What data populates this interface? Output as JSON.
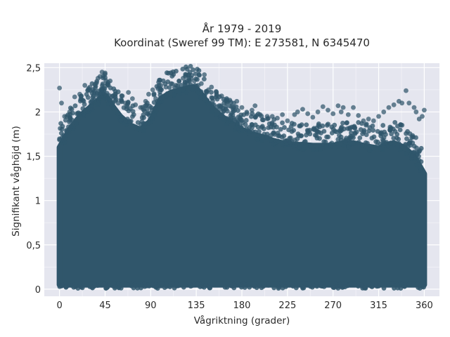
{
  "chart_data": {
    "type": "scatter",
    "title_line1": "År 1979 - 2019",
    "title_line2": "Koordinat (Sweref 99 TM): E 273581, N 6345470",
    "xlabel": "Vågriktning (grader)",
    "ylabel": "Signifikant våghöjd (m)",
    "xlim": [
      -15,
      375
    ],
    "ylim": [
      -0.08,
      2.55
    ],
    "x_ticks": [
      0,
      45,
      90,
      135,
      180,
      225,
      270,
      315,
      360
    ],
    "x_tick_labels": [
      "0",
      "45",
      "90",
      "135",
      "180",
      "225",
      "270",
      "315",
      "360"
    ],
    "y_ticks": [
      0,
      0.5,
      1,
      1.5,
      2,
      2.5
    ],
    "y_tick_labels": [
      "0",
      "0,5",
      "1",
      "1,5",
      "2",
      "2,5"
    ],
    "grid": true,
    "series": [
      {
        "color": "#30566b",
        "x_range": [
          0,
          360
        ],
        "y_min": 0.05,
        "envelope": {
          "x": [
            0,
            10,
            20,
            30,
            40,
            45,
            50,
            60,
            70,
            80,
            90,
            100,
            110,
            120,
            130,
            135,
            140,
            150,
            160,
            170,
            180,
            190,
            200,
            210,
            220,
            225,
            230,
            240,
            250,
            260,
            270,
            280,
            290,
            300,
            310,
            315,
            320,
            330,
            340,
            350,
            360
          ],
          "y_max": [
            1.6,
            1.8,
            1.95,
            2.05,
            2.15,
            2.2,
            2.1,
            1.95,
            1.85,
            1.8,
            1.9,
            2.15,
            2.22,
            2.25,
            2.28,
            2.27,
            2.2,
            2.05,
            1.95,
            1.87,
            1.8,
            1.75,
            1.72,
            1.68,
            1.65,
            1.65,
            1.63,
            1.63,
            1.62,
            1.62,
            1.62,
            1.65,
            1.65,
            1.62,
            1.6,
            1.58,
            1.62,
            1.65,
            1.6,
            1.5,
            1.3
          ]
        },
        "outliers": [
          [
            0,
            2.27
          ],
          [
            2,
            2.1
          ],
          [
            5,
            1.95
          ],
          [
            10,
            2.0
          ],
          [
            15,
            2.17
          ],
          [
            20,
            2.2
          ],
          [
            25,
            2.3
          ],
          [
            30,
            2.28
          ],
          [
            35,
            2.31
          ],
          [
            38,
            2.38
          ],
          [
            40,
            2.4
          ],
          [
            42,
            2.45
          ],
          [
            45,
            2.44
          ],
          [
            47,
            2.3
          ],
          [
            50,
            2.35
          ],
          [
            55,
            2.2
          ],
          [
            58,
            2.1
          ],
          [
            62,
            2.18
          ],
          [
            65,
            2.1
          ],
          [
            68,
            2.22
          ],
          [
            72,
            2.15
          ],
          [
            75,
            2.08
          ],
          [
            80,
            2.05
          ],
          [
            85,
            2.12
          ],
          [
            88,
            2.2
          ],
          [
            92,
            2.25
          ],
          [
            95,
            2.15
          ],
          [
            100,
            2.3
          ],
          [
            105,
            2.28
          ],
          [
            110,
            2.32
          ],
          [
            115,
            2.3
          ],
          [
            118,
            2.35
          ],
          [
            122,
            2.38
          ],
          [
            125,
            2.42
          ],
          [
            128,
            2.36
          ],
          [
            130,
            2.38
          ],
          [
            133,
            2.35
          ],
          [
            137,
            2.3
          ],
          [
            140,
            2.32
          ],
          [
            143,
            2.42
          ],
          [
            147,
            2.25
          ],
          [
            150,
            2.28
          ],
          [
            155,
            2.2
          ],
          [
            160,
            2.18
          ],
          [
            165,
            2.1
          ],
          [
            170,
            2.06
          ],
          [
            175,
            2.12
          ],
          [
            180,
            2.05
          ],
          [
            185,
            1.98
          ],
          [
            190,
            2.02
          ],
          [
            193,
            2.07
          ],
          [
            198,
            1.97
          ],
          [
            205,
            1.95
          ],
          [
            210,
            1.95
          ],
          [
            215,
            1.93
          ],
          [
            220,
            1.97
          ],
          [
            225,
            1.9
          ],
          [
            232,
            1.97
          ],
          [
            235,
            2.0
          ],
          [
            240,
            2.03
          ],
          [
            245,
            1.98
          ],
          [
            250,
            1.94
          ],
          [
            255,
            2.0
          ],
          [
            260,
            2.06
          ],
          [
            265,
            2.02
          ],
          [
            270,
            1.98
          ],
          [
            275,
            2.07
          ],
          [
            278,
            2.0
          ],
          [
            280,
            2.05
          ],
          [
            285,
            1.97
          ],
          [
            290,
            2.05
          ],
          [
            295,
            1.96
          ],
          [
            300,
            1.9
          ],
          [
            305,
            1.92
          ],
          [
            310,
            1.9
          ],
          [
            315,
            1.95
          ],
          [
            320,
            2.0
          ],
          [
            325,
            2.05
          ],
          [
            330,
            2.08
          ],
          [
            335,
            2.12
          ],
          [
            338,
            2.1
          ],
          [
            342,
            2.24
          ],
          [
            345,
            2.1
          ],
          [
            350,
            2.05
          ],
          [
            352,
            2.0
          ],
          [
            355,
            1.92
          ],
          [
            358,
            1.95
          ],
          [
            360,
            2.02
          ]
        ]
      }
    ]
  }
}
